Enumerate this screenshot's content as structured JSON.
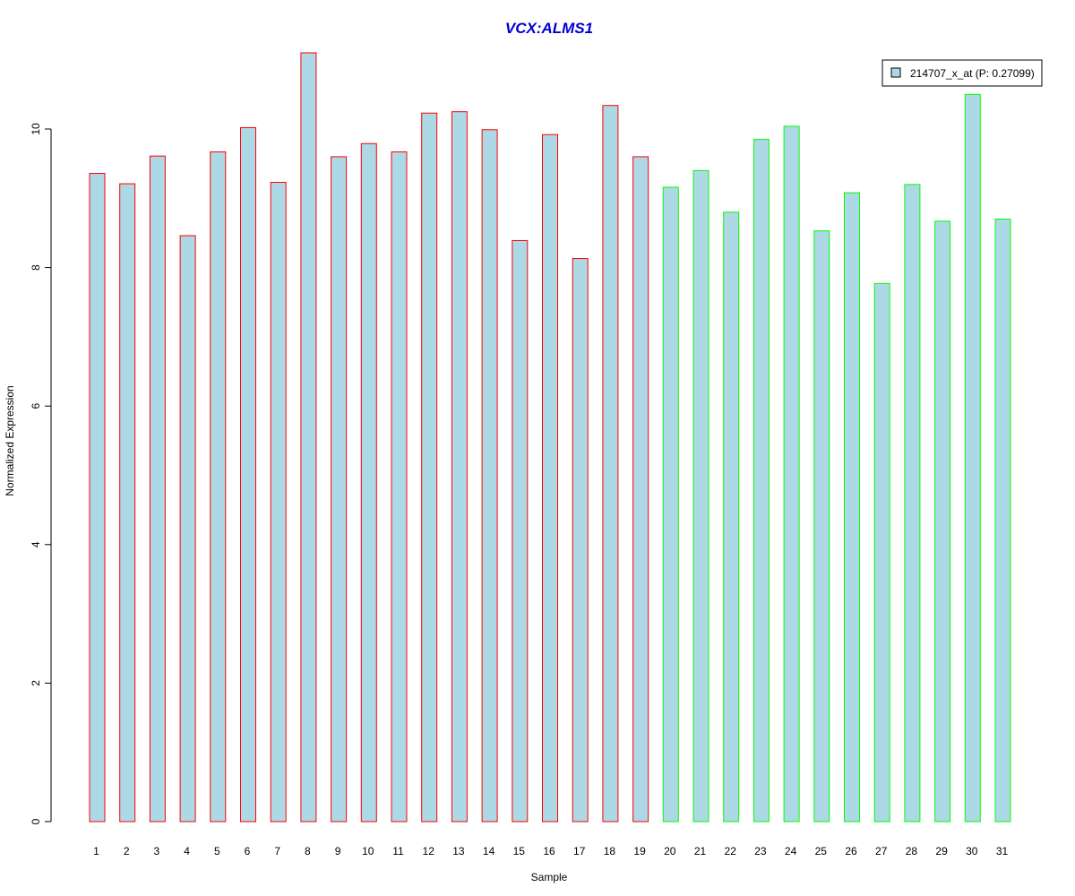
{
  "chart_data": {
    "type": "bar",
    "title": "VCX:ALMS1",
    "xlabel": "Sample",
    "ylabel": "Normalized Expression",
    "ylim": [
      0,
      11.1
    ],
    "yticks": [
      0,
      2,
      4,
      6,
      8,
      10
    ],
    "grid": false,
    "legend": {
      "placement": "top-right",
      "label": "214707_x_at (P: 0.27099)"
    },
    "categories": [
      "1",
      "2",
      "3",
      "4",
      "5",
      "6",
      "7",
      "8",
      "9",
      "10",
      "11",
      "12",
      "13",
      "14",
      "15",
      "16",
      "17",
      "18",
      "19",
      "20",
      "21",
      "22",
      "23",
      "24",
      "25",
      "26",
      "27",
      "28",
      "29",
      "30",
      "31"
    ],
    "series": [
      {
        "name": "214707_x_at (P: 0.27099)",
        "values": [
          9.36,
          9.21,
          9.61,
          8.46,
          9.67,
          10.02,
          9.23,
          11.1,
          9.6,
          9.79,
          9.67,
          10.23,
          10.25,
          9.99,
          8.39,
          9.92,
          8.13,
          10.34,
          9.6,
          9.16,
          9.4,
          8.8,
          9.85,
          10.04,
          8.53,
          9.08,
          7.77,
          9.2,
          8.67,
          10.5,
          8.7
        ],
        "groups": [
          "red",
          "red",
          "red",
          "red",
          "red",
          "red",
          "red",
          "red",
          "red",
          "red",
          "red",
          "red",
          "red",
          "red",
          "red",
          "red",
          "red",
          "red",
          "red",
          "green",
          "green",
          "green",
          "green",
          "green",
          "green",
          "green",
          "green",
          "green",
          "green",
          "green",
          "green"
        ]
      }
    ],
    "colors": {
      "fill": "#add8e6",
      "group_red": "#ff0000",
      "group_green": "#00ff00",
      "title": "#0000cd"
    }
  }
}
